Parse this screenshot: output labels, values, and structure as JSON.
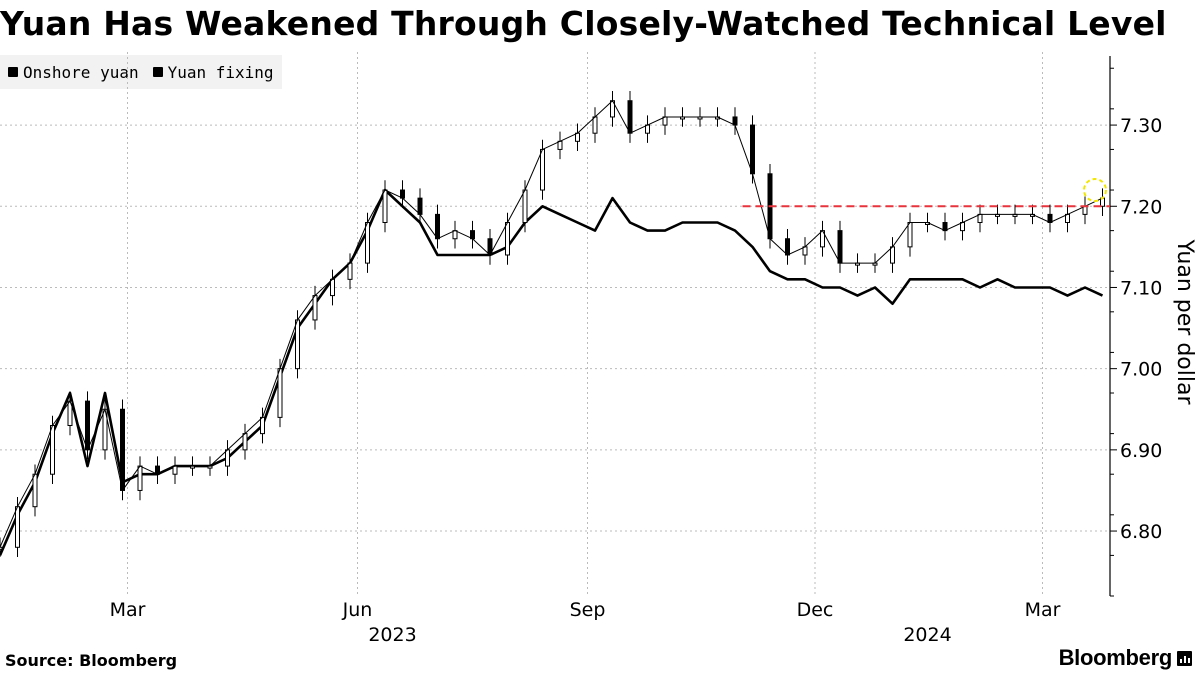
{
  "title": "Yuan Has Weakened Through Closely-Watched Technical Level",
  "source": "Source: Bloomberg",
  "brand": "Bloomberg",
  "colors": {
    "line": "#000000",
    "threshold": "#e8323c",
    "highlight": "#f2e600",
    "grid": "#bbbbbb"
  },
  "chart_data": {
    "type": "line",
    "title": "Yuan Has Weakened Through Closely-Watched Technical Level",
    "ylabel": "Yuan per dollar",
    "xlabel": "",
    "ylim": [
      6.72,
      7.39
    ],
    "yticks": [
      6.8,
      6.9,
      7.0,
      7.1,
      7.2,
      7.3
    ],
    "ytick_labels": [
      "6.80",
      "6.90",
      "7.00",
      "7.10",
      "7.20",
      "7.30"
    ],
    "xlim": [
      "2023-01-09",
      "2024-03-28"
    ],
    "xticks": [
      {
        "date": "2023-03-01",
        "label": "Mar"
      },
      {
        "date": "2023-06-01",
        "label": "Jun"
      },
      {
        "date": "2023-09-01",
        "label": "Sep"
      },
      {
        "date": "2023-12-01",
        "label": "Dec"
      },
      {
        "date": "2024-03-01",
        "label": "Mar"
      }
    ],
    "year_labels": [
      {
        "date": "2023-06-15",
        "label": "2023"
      },
      {
        "date": "2024-01-15",
        "label": "2024"
      }
    ],
    "grid": true,
    "legend_position": "top-left",
    "threshold": {
      "value": 7.2,
      "start": "2023-11-02",
      "end": "2024-03-28"
    },
    "highlight": {
      "date": "2024-03-22",
      "value": 7.22
    },
    "series": [
      {
        "name": "Onshore yuan",
        "style": "candlestick",
        "x": [
          "2023-01-09",
          "2023-01-16",
          "2023-01-23",
          "2023-01-30",
          "2023-02-06",
          "2023-02-13",
          "2023-02-20",
          "2023-02-27",
          "2023-03-06",
          "2023-03-13",
          "2023-03-20",
          "2023-03-27",
          "2023-04-03",
          "2023-04-10",
          "2023-04-17",
          "2023-04-24",
          "2023-05-01",
          "2023-05-08",
          "2023-05-15",
          "2023-05-22",
          "2023-05-29",
          "2023-06-05",
          "2023-06-12",
          "2023-06-19",
          "2023-06-26",
          "2023-07-03",
          "2023-07-10",
          "2023-07-17",
          "2023-07-24",
          "2023-07-31",
          "2023-08-07",
          "2023-08-14",
          "2023-08-21",
          "2023-08-28",
          "2023-09-04",
          "2023-09-11",
          "2023-09-18",
          "2023-09-25",
          "2023-10-02",
          "2023-10-09",
          "2023-10-16",
          "2023-10-23",
          "2023-10-30",
          "2023-11-06",
          "2023-11-13",
          "2023-11-20",
          "2023-11-27",
          "2023-12-04",
          "2023-12-11",
          "2023-12-18",
          "2023-12-25",
          "2024-01-01",
          "2024-01-08",
          "2024-01-15",
          "2024-01-22",
          "2024-01-29",
          "2024-02-05",
          "2024-02-12",
          "2024-02-19",
          "2024-02-26",
          "2024-03-04",
          "2024-03-11",
          "2024-03-18",
          "2024-03-25"
        ],
        "values": [
          6.78,
          6.83,
          6.87,
          6.93,
          6.96,
          6.9,
          6.95,
          6.85,
          6.88,
          6.87,
          6.88,
          6.88,
          6.88,
          6.9,
          6.92,
          6.94,
          7.0,
          7.06,
          7.09,
          7.11,
          7.13,
          7.18,
          7.22,
          7.21,
          7.19,
          7.16,
          7.17,
          7.16,
          7.14,
          7.18,
          7.22,
          7.27,
          7.28,
          7.29,
          7.31,
          7.33,
          7.29,
          7.3,
          7.31,
          7.31,
          7.31,
          7.31,
          7.3,
          7.24,
          7.16,
          7.14,
          7.15,
          7.17,
          7.13,
          7.13,
          7.13,
          7.15,
          7.18,
          7.18,
          7.17,
          7.18,
          7.19,
          7.19,
          7.19,
          7.19,
          7.18,
          7.19,
          7.2,
          7.21
        ]
      },
      {
        "name": "Yuan fixing",
        "style": "line",
        "x": [
          "2023-01-09",
          "2023-01-16",
          "2023-01-23",
          "2023-01-30",
          "2023-02-06",
          "2023-02-13",
          "2023-02-20",
          "2023-02-27",
          "2023-03-06",
          "2023-03-13",
          "2023-03-20",
          "2023-03-27",
          "2023-04-03",
          "2023-04-10",
          "2023-04-17",
          "2023-04-24",
          "2023-05-01",
          "2023-05-08",
          "2023-05-15",
          "2023-05-22",
          "2023-05-29",
          "2023-06-05",
          "2023-06-12",
          "2023-06-19",
          "2023-06-26",
          "2023-07-03",
          "2023-07-10",
          "2023-07-17",
          "2023-07-24",
          "2023-07-31",
          "2023-08-07",
          "2023-08-14",
          "2023-08-21",
          "2023-08-28",
          "2023-09-04",
          "2023-09-11",
          "2023-09-18",
          "2023-09-25",
          "2023-10-02",
          "2023-10-09",
          "2023-10-16",
          "2023-10-23",
          "2023-10-30",
          "2023-11-06",
          "2023-11-13",
          "2023-11-20",
          "2023-11-27",
          "2023-12-04",
          "2023-12-11",
          "2023-12-18",
          "2023-12-25",
          "2024-01-01",
          "2024-01-08",
          "2024-01-15",
          "2024-01-22",
          "2024-01-29",
          "2024-02-05",
          "2024-02-12",
          "2024-02-19",
          "2024-02-26",
          "2024-03-04",
          "2024-03-11",
          "2024-03-18",
          "2024-03-25"
        ],
        "values": [
          6.77,
          6.82,
          6.86,
          6.92,
          6.97,
          6.88,
          6.97,
          6.86,
          6.87,
          6.87,
          6.88,
          6.88,
          6.88,
          6.89,
          6.91,
          6.93,
          6.99,
          7.05,
          7.08,
          7.11,
          7.13,
          7.17,
          7.22,
          7.2,
          7.18,
          7.14,
          7.14,
          7.14,
          7.14,
          7.15,
          7.18,
          7.2,
          7.19,
          7.18,
          7.17,
          7.21,
          7.18,
          7.17,
          7.17,
          7.18,
          7.18,
          7.18,
          7.17,
          7.15,
          7.12,
          7.11,
          7.11,
          7.1,
          7.1,
          7.09,
          7.1,
          7.08,
          7.11,
          7.11,
          7.11,
          7.11,
          7.1,
          7.11,
          7.1,
          7.1,
          7.1,
          7.09,
          7.1,
          7.09
        ]
      }
    ]
  }
}
